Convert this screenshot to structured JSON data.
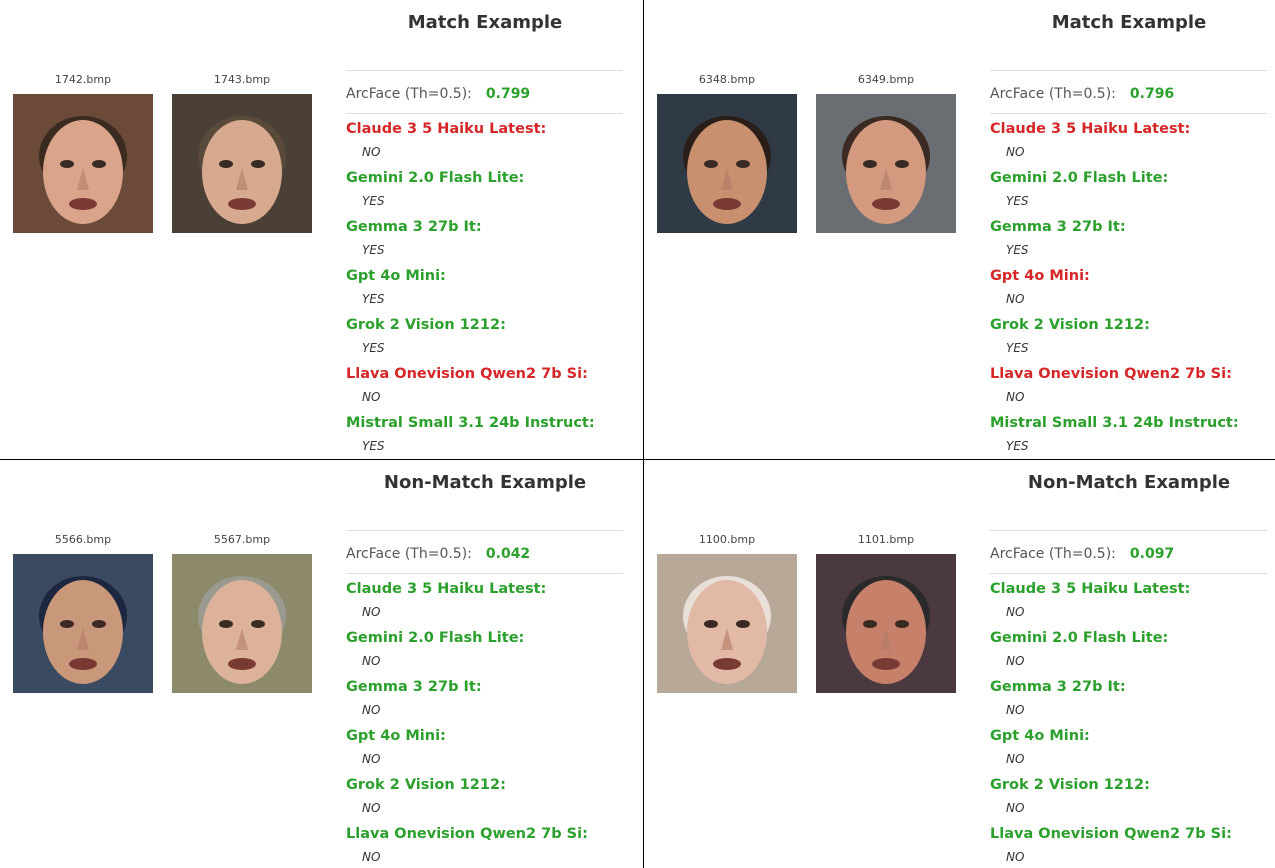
{
  "colors": {
    "correct": "#2ca02c",
    "incorrect": "#d62728"
  },
  "panels": [
    {
      "title": "Match Example",
      "img_a": "1742.bmp",
      "img_b": "1743.bmp",
      "arcface_label": "ArcFace (Th=0.5):",
      "arcface_score": "0.799",
      "models": [
        {
          "name": "Claude 3 5 Haiku Latest:",
          "answer": "NO",
          "correct": false
        },
        {
          "name": "Gemini 2.0 Flash Lite:",
          "answer": "YES",
          "correct": true
        },
        {
          "name": "Gemma 3 27b It:",
          "answer": "YES",
          "correct": true
        },
        {
          "name": "Gpt 4o Mini:",
          "answer": "YES",
          "correct": true
        },
        {
          "name": "Grok 2 Vision 1212:",
          "answer": "YES",
          "correct": true
        },
        {
          "name": "Llava Onevision Qwen2 7b Si:",
          "answer": "NO",
          "correct": false
        },
        {
          "name": "Mistral Small 3.1 24b Instruct:",
          "answer": "YES",
          "correct": true
        }
      ]
    },
    {
      "title": "Match Example",
      "img_a": "6348.bmp",
      "img_b": "6349.bmp",
      "arcface_label": "ArcFace (Th=0.5):",
      "arcface_score": "0.796",
      "models": [
        {
          "name": "Claude 3 5 Haiku Latest:",
          "answer": "NO",
          "correct": false
        },
        {
          "name": "Gemini 2.0 Flash Lite:",
          "answer": "YES",
          "correct": true
        },
        {
          "name": "Gemma 3 27b It:",
          "answer": "YES",
          "correct": true
        },
        {
          "name": "Gpt 4o Mini:",
          "answer": "NO",
          "correct": false
        },
        {
          "name": "Grok 2 Vision 1212:",
          "answer": "YES",
          "correct": true
        },
        {
          "name": "Llava Onevision Qwen2 7b Si:",
          "answer": "NO",
          "correct": false
        },
        {
          "name": "Mistral Small 3.1 24b Instruct:",
          "answer": "YES",
          "correct": true
        }
      ]
    },
    {
      "title": "Non-Match Example",
      "img_a": "5566.bmp",
      "img_b": "5567.bmp",
      "arcface_label": "ArcFace (Th=0.5):",
      "arcface_score": "0.042",
      "models": [
        {
          "name": "Claude 3 5 Haiku Latest:",
          "answer": "NO",
          "correct": true
        },
        {
          "name": "Gemini 2.0 Flash Lite:",
          "answer": "NO",
          "correct": true
        },
        {
          "name": "Gemma 3 27b It:",
          "answer": "NO",
          "correct": true
        },
        {
          "name": "Gpt 4o Mini:",
          "answer": "NO",
          "correct": true
        },
        {
          "name": "Grok 2 Vision 1212:",
          "answer": "NO",
          "correct": true
        },
        {
          "name": "Llava Onevision Qwen2 7b Si:",
          "answer": "NO",
          "correct": true
        }
      ]
    },
    {
      "title": "Non-Match Example",
      "img_a": "1100.bmp",
      "img_b": "1101.bmp",
      "arcface_label": "ArcFace (Th=0.5):",
      "arcface_score": "0.097",
      "models": [
        {
          "name": "Claude 3 5 Haiku Latest:",
          "answer": "NO",
          "correct": true
        },
        {
          "name": "Gemini 2.0 Flash Lite:",
          "answer": "NO",
          "correct": true
        },
        {
          "name": "Gemma 3 27b It:",
          "answer": "NO",
          "correct": true
        },
        {
          "name": "Gpt 4o Mini:",
          "answer": "NO",
          "correct": true
        },
        {
          "name": "Grok 2 Vision 1212:",
          "answer": "NO",
          "correct": true
        },
        {
          "name": "Llava Onevision Qwen2 7b Si:",
          "answer": "NO",
          "correct": true
        }
      ]
    }
  ]
}
